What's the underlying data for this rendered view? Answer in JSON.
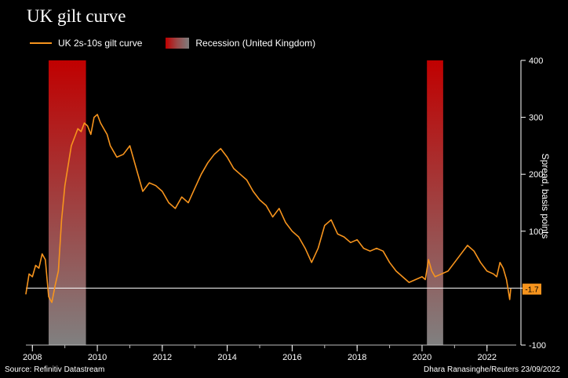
{
  "title": "UK gilt curve",
  "legend": {
    "line_label": "UK 2s-10s gilt curve",
    "recession_label": "Recession (United Kingdom)"
  },
  "source": "Source: Refinitiv Datastream",
  "credit": "Dhara Ranasinghe/Reuters 23/09/2022",
  "colors": {
    "background": "#000000",
    "line": "#f7941d",
    "recession_top": "#c00000",
    "recession_bottom": "#808080",
    "zero_line": "#ffffff",
    "text": "#ffffff"
  },
  "chart_data": {
    "type": "line",
    "title": "UK gilt curve",
    "xlabel": "",
    "ylabel": "Spread, basis points",
    "xlim": [
      2007.8,
      2022.9
    ],
    "ylim": [
      -100,
      400
    ],
    "x_ticks": [
      2008,
      2010,
      2012,
      2014,
      2016,
      2018,
      2020,
      2022
    ],
    "y_ticks": [
      400,
      300,
      200,
      100,
      0,
      -100
    ],
    "y_tick_labels": [
      "400",
      "300",
      "200",
      "100",
      "",
      "-100"
    ],
    "y_axis_side": "right",
    "grid": false,
    "legend_position": "top-left",
    "recessions": [
      {
        "start": 2008.5,
        "end": 2009.65
      },
      {
        "start": 2020.15,
        "end": 2020.65
      }
    ],
    "reference_line": {
      "y": 0
    },
    "last_value_label": "-1.7",
    "series": [
      {
        "name": "UK 2s-10s gilt curve",
        "x": [
          2007.8,
          2007.9,
          2008.0,
          2008.1,
          2008.2,
          2008.3,
          2008.4,
          2008.5,
          2008.6,
          2008.7,
          2008.8,
          2008.9,
          2009.0,
          2009.1,
          2009.2,
          2009.3,
          2009.4,
          2009.5,
          2009.6,
          2009.7,
          2009.8,
          2009.9,
          2010.0,
          2010.1,
          2010.2,
          2010.3,
          2010.4,
          2010.5,
          2010.6,
          2010.8,
          2011.0,
          2011.2,
          2011.4,
          2011.6,
          2011.8,
          2012.0,
          2012.2,
          2012.4,
          2012.6,
          2012.8,
          2013.0,
          2013.2,
          2013.4,
          2013.6,
          2013.8,
          2014.0,
          2014.2,
          2014.4,
          2014.6,
          2014.8,
          2015.0,
          2015.2,
          2015.4,
          2015.6,
          2015.8,
          2016.0,
          2016.2,
          2016.4,
          2016.6,
          2016.8,
          2017.0,
          2017.2,
          2017.4,
          2017.6,
          2017.8,
          2018.0,
          2018.2,
          2018.4,
          2018.6,
          2018.8,
          2019.0,
          2019.2,
          2019.4,
          2019.6,
          2019.8,
          2020.0,
          2020.1,
          2020.2,
          2020.3,
          2020.4,
          2020.6,
          2020.8,
          2021.0,
          2021.2,
          2021.4,
          2021.6,
          2021.8,
          2022.0,
          2022.2,
          2022.3,
          2022.4,
          2022.5,
          2022.6,
          2022.7,
          2022.73
        ],
        "values": [
          -10,
          25,
          20,
          40,
          35,
          60,
          50,
          -15,
          -25,
          5,
          30,
          120,
          180,
          215,
          250,
          265,
          280,
          275,
          290,
          285,
          270,
          300,
          305,
          290,
          280,
          270,
          250,
          240,
          230,
          235,
          250,
          210,
          170,
          185,
          180,
          170,
          150,
          140,
          160,
          150,
          175,
          200,
          220,
          235,
          245,
          230,
          210,
          200,
          190,
          170,
          155,
          145,
          125,
          140,
          115,
          100,
          90,
          70,
          45,
          70,
          110,
          120,
          95,
          90,
          80,
          85,
          70,
          65,
          70,
          65,
          45,
          30,
          20,
          10,
          15,
          20,
          15,
          50,
          30,
          20,
          25,
          30,
          45,
          60,
          75,
          65,
          45,
          30,
          25,
          20,
          45,
          35,
          15,
          -20,
          -1.7
        ]
      }
    ]
  }
}
